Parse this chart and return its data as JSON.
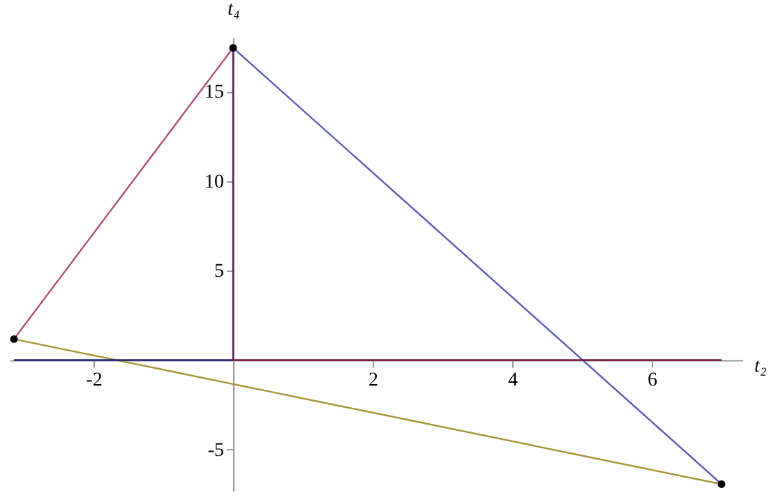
{
  "chart_data": {
    "type": "line",
    "xlabel": "t₂",
    "ylabel": "t₄",
    "xlim": [
      -3.2,
      7.3
    ],
    "ylim": [
      -7.3,
      18
    ],
    "xticks": [
      -2,
      2,
      4,
      6
    ],
    "yticks": [
      -5,
      5,
      10,
      15
    ],
    "grid": false,
    "legend": false,
    "series": [
      {
        "color": "#b0487a",
        "x": [
          -3.14,
          0
        ],
        "values": [
          1.17,
          17.43
        ]
      },
      {
        "color": "#5a5ab4",
        "x": [
          0,
          7
        ],
        "values": [
          17.43,
          -6.93
        ]
      },
      {
        "color": "#a89438",
        "x": [
          -3.14,
          7
        ],
        "values": [
          1.17,
          -6.93
        ]
      },
      {
        "color": "#1e1e78",
        "x": [
          -3.14,
          0
        ],
        "values": [
          0,
          0
        ]
      },
      {
        "color": "#78143c",
        "x": [
          0,
          7
        ],
        "values": [
          0,
          0
        ]
      },
      {
        "color": "#5a285a",
        "x": [
          0,
          0
        ],
        "values": [
          0,
          17.43
        ]
      },
      {
        "type": "scatter",
        "color": "#000000",
        "marker": "circle",
        "x": [
          -3.14,
          0,
          7
        ],
        "values": [
          1.17,
          17.43,
          -6.93
        ]
      }
    ]
  }
}
